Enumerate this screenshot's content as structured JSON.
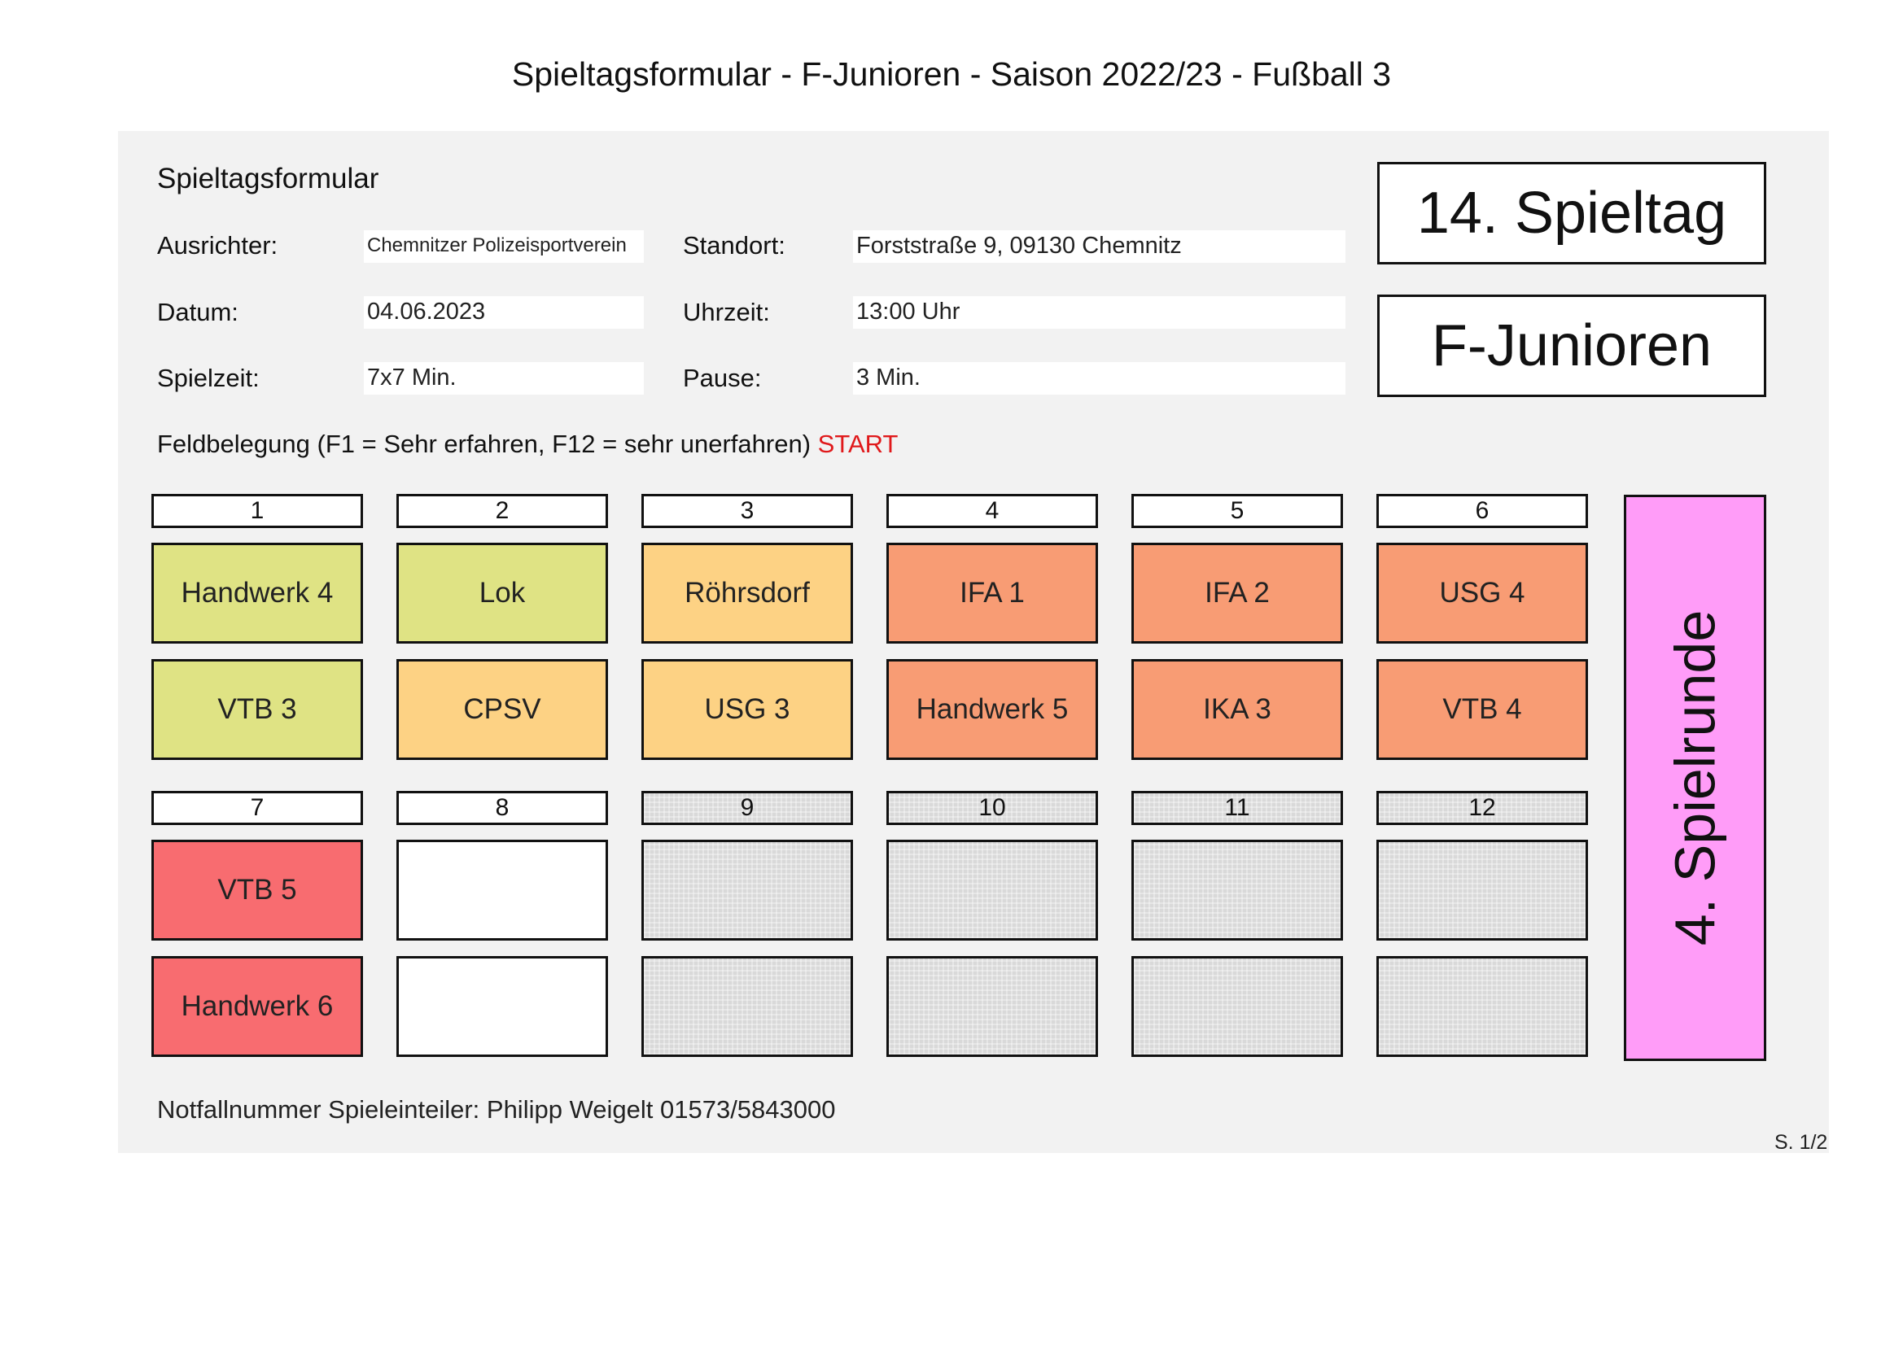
{
  "page_title": "Spieltagsformular - F-Junioren - Saison 2022/23 - Fußball 3",
  "form": {
    "heading": "Spieltagsformular",
    "ausrichter_label": "Ausrichter:",
    "ausrichter_value": "Chemnitzer Polizeisportverein",
    "standort_label": "Standort:",
    "standort_value": "Forststraße 9, 09130 Chemnitz",
    "datum_label": "Datum:",
    "datum_value": "04.06.2023",
    "uhrzeit_label": "Uhrzeit:",
    "uhrzeit_value": "13:00 Uhr",
    "spielzeit_label": "Spielzeit:",
    "spielzeit_value": "7x7 Min.",
    "pause_label": "Pause:",
    "pause_value": "3 Min."
  },
  "matchday": "14. Spieltag",
  "age_group": "F-Junioren",
  "assignment": {
    "heading": "Feldbelegung (F1 = Sehr erfahren, F12 = sehr unerfahren) ",
    "start": "START"
  },
  "fields": [
    {
      "number": "1",
      "team_a": "Handwerk 4",
      "team_b": "VTB 3",
      "color": "#dfe384"
    },
    {
      "number": "2",
      "team_a": "Lok",
      "team_b": "CPSV",
      "color_a": "#dfe384",
      "color_b": "#fdd284"
    },
    {
      "number": "3",
      "team_a": "Röhrsdorf",
      "team_b": "USG 3",
      "color": "#fdd284"
    },
    {
      "number": "4",
      "team_a": "IFA 1",
      "team_b": "Handwerk 5",
      "color": "#f89c74"
    },
    {
      "number": "5",
      "team_a": "IFA 2",
      "team_b": "IKA 3",
      "color": "#f89c74"
    },
    {
      "number": "6",
      "team_a": "USG 4",
      "team_b": "VTB 4",
      "color": "#f89c74"
    },
    {
      "number": "7",
      "team_a": "VTB 5",
      "team_b": "Handwerk 6",
      "color": "#f86c70"
    },
    {
      "number": "8",
      "team_a": "",
      "team_b": "",
      "color": "#ffffff"
    },
    {
      "number": "9",
      "team_a": "",
      "team_b": "",
      "color": "#d9d9d9"
    },
    {
      "number": "10",
      "team_a": "",
      "team_b": "",
      "color": "#d9d9d9"
    },
    {
      "number": "11",
      "team_a": "",
      "team_b": "",
      "color": "#d9d9d9"
    },
    {
      "number": "12",
      "team_a": "",
      "team_b": "",
      "color": "#d9d9d9"
    }
  ],
  "round": "4. Spielrunde",
  "footer": "Notfallnummer Spieleinteiler: Philipp Weigelt 01573/5843000",
  "page_number": "S. 1/2"
}
